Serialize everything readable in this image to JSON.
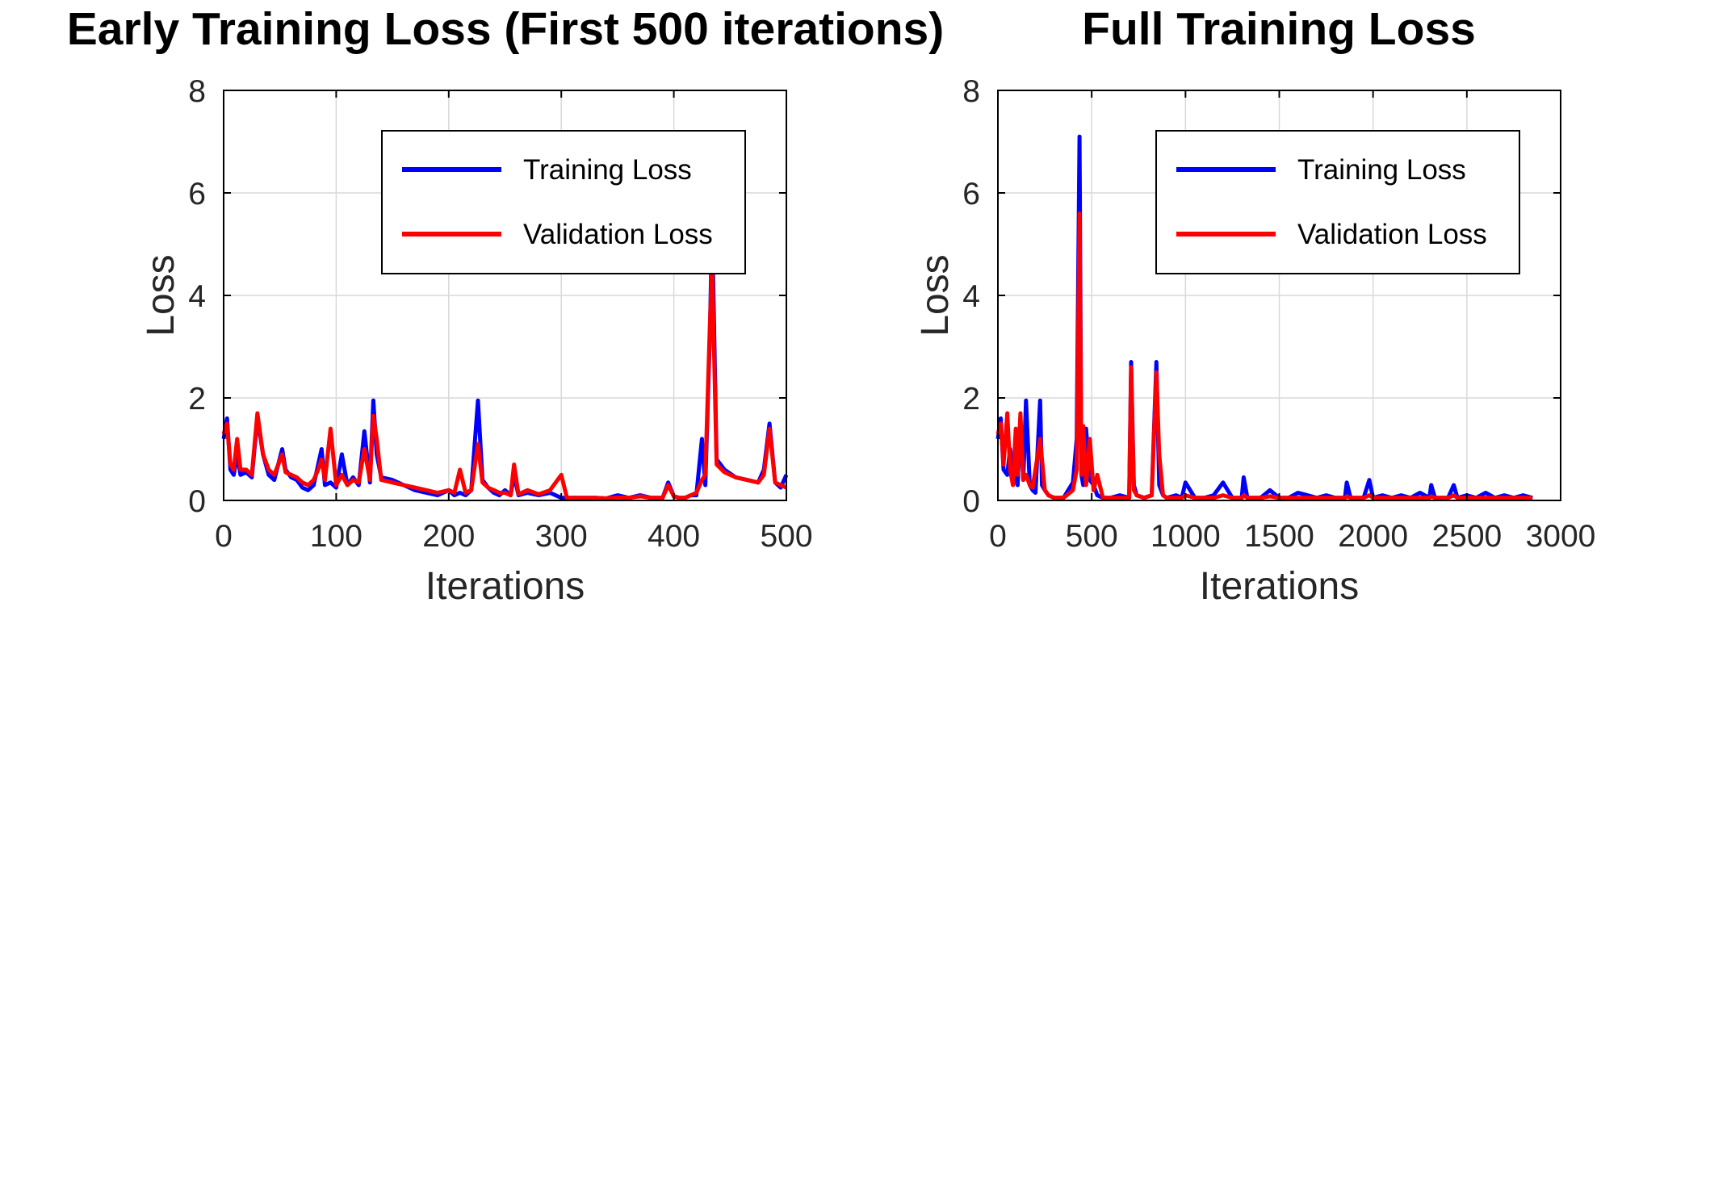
{
  "colors": {
    "training": "#0000ff",
    "validation": "#ff0000",
    "grid": "#d9d9d9",
    "axis": "#000000"
  },
  "chart_data": [
    {
      "type": "line",
      "title": "Early Training Loss (First 500 iterations)",
      "xlabel": "Iterations",
      "ylabel": "Loss",
      "xlim": [
        0,
        500
      ],
      "ylim": [
        0,
        8
      ],
      "xticks": [
        0,
        100,
        200,
        300,
        400,
        500
      ],
      "yticks": [
        0,
        2,
        4,
        6,
        8
      ],
      "grid": true,
      "legend_position": "top-right",
      "series": [
        {
          "name": "Training Loss",
          "color": "#0000ff",
          "x": [
            0,
            3,
            6,
            9,
            12,
            15,
            20,
            25,
            30,
            35,
            40,
            45,
            52,
            55,
            60,
            65,
            70,
            75,
            80,
            84,
            87,
            90,
            95,
            100,
            105,
            110,
            115,
            120,
            125,
            130,
            133,
            136,
            140,
            150,
            160,
            170,
            180,
            190,
            200,
            205,
            210,
            215,
            220,
            226,
            230,
            235,
            240,
            245,
            250,
            255,
            258,
            262,
            270,
            280,
            290,
            300,
            305,
            310,
            320,
            330,
            340,
            350,
            360,
            370,
            380,
            390,
            395,
            400,
            405,
            410,
            415,
            420,
            425,
            428,
            432,
            434,
            438,
            445,
            455,
            465,
            475,
            480,
            485,
            490,
            495,
            500
          ],
          "y": [
            1.2,
            1.6,
            0.6,
            0.5,
            0.9,
            0.5,
            0.55,
            0.45,
            1.6,
            0.9,
            0.5,
            0.4,
            1.0,
            0.6,
            0.45,
            0.4,
            0.25,
            0.2,
            0.3,
            0.7,
            1.0,
            0.3,
            0.35,
            0.25,
            0.9,
            0.3,
            0.45,
            0.3,
            1.35,
            0.35,
            1.95,
            0.9,
            0.45,
            0.4,
            0.3,
            0.2,
            0.15,
            0.1,
            0.2,
            0.1,
            0.15,
            0.1,
            0.2,
            1.95,
            0.4,
            0.25,
            0.15,
            0.1,
            0.2,
            0.1,
            0.5,
            0.1,
            0.15,
            0.1,
            0.15,
            0.05,
            0.05,
            0.05,
            0.05,
            0.05,
            0.04,
            0.1,
            0.05,
            0.1,
            0.05,
            0.05,
            0.35,
            0.08,
            0.05,
            0.05,
            0.1,
            0.1,
            1.2,
            0.3,
            3.2,
            5.4,
            0.8,
            0.6,
            0.45,
            0.4,
            0.35,
            0.6,
            1.5,
            0.35,
            0.25,
            0.5
          ]
        },
        {
          "name": "Validation Loss",
          "color": "#ff0000",
          "x": [
            0,
            3,
            6,
            9,
            12,
            15,
            20,
            25,
            30,
            35,
            40,
            45,
            52,
            55,
            60,
            65,
            70,
            75,
            80,
            84,
            87,
            90,
            95,
            100,
            105,
            110,
            115,
            120,
            125,
            130,
            133,
            136,
            140,
            150,
            160,
            170,
            180,
            190,
            200,
            205,
            210,
            215,
            220,
            226,
            230,
            235,
            240,
            245,
            250,
            255,
            258,
            262,
            270,
            280,
            290,
            300,
            305,
            310,
            320,
            330,
            340,
            350,
            360,
            370,
            380,
            390,
            395,
            400,
            405,
            410,
            415,
            420,
            425,
            428,
            432,
            434,
            438,
            445,
            455,
            465,
            475,
            480,
            485,
            490,
            495,
            500
          ],
          "y": [
            1.3,
            1.5,
            0.7,
            0.6,
            1.2,
            0.6,
            0.6,
            0.5,
            1.7,
            0.9,
            0.6,
            0.5,
            0.9,
            0.55,
            0.5,
            0.45,
            0.35,
            0.3,
            0.4,
            0.6,
            0.8,
            0.4,
            1.4,
            0.3,
            0.5,
            0.3,
            0.4,
            0.35,
            1.0,
            0.4,
            1.65,
            1.2,
            0.4,
            0.35,
            0.3,
            0.25,
            0.2,
            0.15,
            0.2,
            0.15,
            0.6,
            0.15,
            0.2,
            1.1,
            0.35,
            0.25,
            0.2,
            0.15,
            0.15,
            0.1,
            0.7,
            0.12,
            0.2,
            0.12,
            0.2,
            0.5,
            0.05,
            0.05,
            0.05,
            0.05,
            0.04,
            0.06,
            0.05,
            0.08,
            0.05,
            0.05,
            0.3,
            0.08,
            0.05,
            0.05,
            0.1,
            0.15,
            0.4,
            0.5,
            3.4,
            4.6,
            0.7,
            0.55,
            0.45,
            0.4,
            0.35,
            0.5,
            1.4,
            0.35,
            0.3,
            0.25
          ]
        }
      ]
    },
    {
      "type": "line",
      "title": "Full Training Loss",
      "xlabel": "Iterations",
      "ylabel": "Loss",
      "xlim": [
        0,
        3000
      ],
      "ylim": [
        0,
        8
      ],
      "xticks": [
        0,
        500,
        1000,
        1500,
        2000,
        2500,
        3000
      ],
      "yticks": [
        0,
        2,
        4,
        6,
        8
      ],
      "grid": true,
      "legend_position": "top-right",
      "series": [
        {
          "name": "Training Loss",
          "color": "#0000ff",
          "x": [
            0,
            15,
            30,
            50,
            65,
            80,
            95,
            105,
            120,
            135,
            150,
            170,
            185,
            200,
            225,
            235,
            250,
            270,
            300,
            350,
            400,
            420,
            435,
            445,
            455,
            470,
            490,
            510,
            530,
            560,
            600,
            650,
            700,
            710,
            725,
            740,
            780,
            820,
            845,
            860,
            880,
            900,
            950,
            980,
            1000,
            1050,
            1100,
            1150,
            1200,
            1250,
            1300,
            1310,
            1330,
            1400,
            1450,
            1500,
            1550,
            1600,
            1650,
            1700,
            1750,
            1800,
            1850,
            1860,
            1880,
            1950,
            1980,
            2000,
            2050,
            2100,
            2150,
            2200,
            2250,
            2300,
            2310,
            2330,
            2400,
            2430,
            2450,
            2500,
            2550,
            2600,
            2650,
            2700,
            2750,
            2800,
            2850
          ],
          "y": [
            1.2,
            1.6,
            0.6,
            0.5,
            1.0,
            0.5,
            0.4,
            0.3,
            1.6,
            0.4,
            1.95,
            0.3,
            0.2,
            0.15,
            1.95,
            0.3,
            0.2,
            0.1,
            0.05,
            0.05,
            0.35,
            1.2,
            7.1,
            0.5,
            0.3,
            1.4,
            0.4,
            0.3,
            0.1,
            0.05,
            0.05,
            0.1,
            0.05,
            2.7,
            0.3,
            0.1,
            0.05,
            0.1,
            2.7,
            0.3,
            0.1,
            0.05,
            0.1,
            0.05,
            0.35,
            0.05,
            0.05,
            0.1,
            0.35,
            0.05,
            0.05,
            0.45,
            0.05,
            0.05,
            0.2,
            0.05,
            0.05,
            0.15,
            0.1,
            0.05,
            0.1,
            0.05,
            0.05,
            0.35,
            0.05,
            0.05,
            0.4,
            0.05,
            0.1,
            0.05,
            0.1,
            0.05,
            0.15,
            0.05,
            0.3,
            0.05,
            0.05,
            0.3,
            0.05,
            0.1,
            0.05,
            0.15,
            0.05,
            0.1,
            0.05,
            0.1,
            0.05
          ]
        },
        {
          "name": "Validation Loss",
          "color": "#ff0000",
          "x": [
            0,
            15,
            30,
            50,
            65,
            80,
            95,
            105,
            120,
            135,
            150,
            170,
            185,
            200,
            225,
            235,
            250,
            270,
            300,
            350,
            400,
            420,
            435,
            445,
            455,
            470,
            490,
            510,
            530,
            560,
            600,
            650,
            700,
            710,
            725,
            740,
            780,
            820,
            845,
            860,
            880,
            900,
            950,
            980,
            1000,
            1050,
            1100,
            1150,
            1200,
            1250,
            1300,
            1310,
            1330,
            1400,
            1450,
            1500,
            1550,
            1600,
            1650,
            1700,
            1750,
            1800,
            1850,
            1860,
            1880,
            1950,
            1980,
            2000,
            2050,
            2100,
            2150,
            2200,
            2250,
            2300,
            2310,
            2330,
            2400,
            2430,
            2450,
            2500,
            2550,
            2600,
            2650,
            2700,
            2750,
            2800,
            2850
          ],
          "y": [
            1.3,
            1.5,
            0.7,
            1.7,
            0.6,
            0.3,
            1.4,
            0.5,
            1.7,
            0.4,
            0.5,
            0.3,
            0.25,
            0.6,
            1.2,
            0.8,
            0.2,
            0.1,
            0.05,
            0.05,
            0.2,
            0.6,
            5.6,
            0.5,
            1.45,
            0.3,
            1.2,
            0.2,
            0.5,
            0.05,
            0.05,
            0.05,
            0.05,
            2.6,
            0.2,
            0.1,
            0.05,
            0.1,
            2.5,
            0.9,
            0.1,
            0.05,
            0.05,
            0.05,
            0.1,
            0.05,
            0.05,
            0.05,
            0.1,
            0.05,
            0.05,
            0.1,
            0.05,
            0.05,
            0.08,
            0.05,
            0.05,
            0.05,
            0.05,
            0.05,
            0.05,
            0.05,
            0.05,
            0.08,
            0.05,
            0.05,
            0.1,
            0.05,
            0.05,
            0.05,
            0.05,
            0.05,
            0.05,
            0.05,
            0.08,
            0.05,
            0.05,
            0.1,
            0.05,
            0.05,
            0.05,
            0.05,
            0.05,
            0.05,
            0.05,
            0.05,
            0.05
          ]
        }
      ]
    }
  ]
}
